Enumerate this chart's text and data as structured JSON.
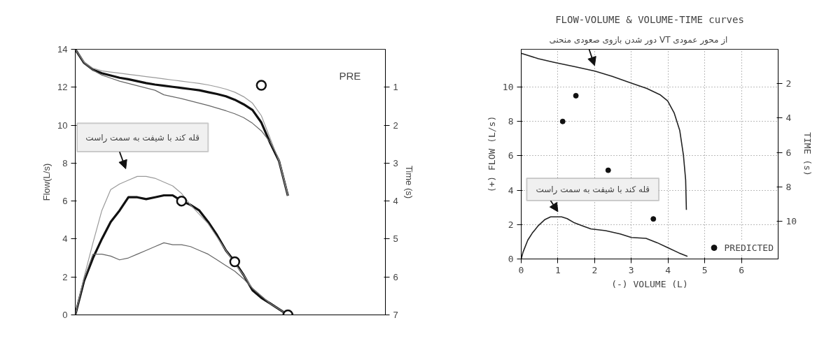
{
  "chart_data": [
    {
      "type": "line",
      "ylabel": "Flow(L/s)",
      "y2label": "Time (s)",
      "categories": [
        null,
        null,
        null,
        null,
        null,
        null,
        null,
        null,
        null,
        null,
        null,
        null,
        null,
        null,
        null,
        null,
        null,
        null,
        null,
        null,
        null,
        null,
        null,
        null,
        null,
        null,
        null,
        null,
        null,
        null,
        null,
        null,
        null,
        null,
        null,
        null
      ],
      "ylim": [
        0,
        14
      ],
      "yticks": [
        0,
        2,
        4,
        6,
        8,
        10,
        12,
        14
      ],
      "y2lim": [
        7,
        0
      ],
      "y2ticks": [
        1,
        2,
        3,
        4,
        5,
        6,
        7
      ],
      "tick_labels": "y",
      "annotations": [
        "PRE",
        "قله کند با شیفت به سمت راست"
      ],
      "series": [
        {
          "color": "#111111",
          "values": [
            0,
            1.8,
            3.0,
            4.0,
            4.9,
            5.5,
            6.2,
            6.2,
            6.1,
            6.2,
            6.3,
            6.3,
            6.0,
            5.8,
            5.5,
            4.9,
            4.2,
            3.4,
            2.8,
            2.1,
            1.3,
            0.9,
            0.6,
            0.3,
            0,
            null,
            null,
            null,
            null,
            null,
            null,
            null,
            null,
            null,
            null,
            null
          ]
        },
        {
          "color": "#9a9a9a",
          "values": [
            0,
            2.0,
            3.8,
            5.5,
            6.6,
            6.9,
            7.1,
            7.3,
            7.3,
            7.2,
            7.0,
            6.8,
            6.4,
            5.8,
            5.3,
            4.8,
            4.1,
            3.4,
            2.7,
            2.1,
            1.4,
            1.0,
            0.6,
            0.3,
            0,
            null,
            null,
            null,
            null,
            null,
            null,
            null,
            null,
            null,
            null,
            null
          ]
        },
        {
          "color": "#666666",
          "values": [
            0,
            1.9,
            3.2,
            3.2,
            3.1,
            2.9,
            3.0,
            3.2,
            3.4,
            3.6,
            3.8,
            3.7,
            3.7,
            3.6,
            3.4,
            3.2,
            2.9,
            2.6,
            2.3,
            1.9,
            1.4,
            1.0,
            0.6,
            0.3,
            0,
            null,
            null,
            null,
            null,
            null,
            null,
            null,
            null,
            null,
            null,
            null
          ]
        },
        {
          "color": "#111111",
          "axis": "y2",
          "values": [
            0,
            0.36,
            0.54,
            0.63,
            0.69,
            0.75,
            0.79,
            0.84,
            0.89,
            0.93,
            0.96,
            0.99,
            1.02,
            1.05,
            1.08,
            1.13,
            1.18,
            1.24,
            1.33,
            1.45,
            1.6,
            1.93,
            2.47,
            2.95,
            3.86,
            null,
            null,
            null,
            null,
            null,
            null,
            null,
            null,
            null,
            null,
            null
          ]
        },
        {
          "color": "#9a9a9a",
          "axis": "y2",
          "values": [
            0,
            0.33,
            0.5,
            0.57,
            0.6,
            0.63,
            0.66,
            0.69,
            0.72,
            0.75,
            0.78,
            0.81,
            0.84,
            0.87,
            0.9,
            0.94,
            0.99,
            1.05,
            1.13,
            1.25,
            1.42,
            1.75,
            2.35,
            2.95,
            3.86,
            null,
            null,
            null,
            null,
            null,
            null,
            null,
            null,
            null,
            null,
            null
          ]
        },
        {
          "color": "#666666",
          "axis": "y2",
          "values": [
            0,
            0.36,
            0.55,
            0.68,
            0.76,
            0.84,
            0.9,
            0.96,
            1.02,
            1.08,
            1.2,
            1.25,
            1.3,
            1.36,
            1.42,
            1.48,
            1.55,
            1.62,
            1.7,
            1.8,
            1.95,
            2.15,
            2.45,
            2.9,
            3.8,
            null,
            null,
            null,
            null,
            null,
            null,
            null,
            null,
            null,
            null,
            null
          ]
        },
        {
          "type": "scatter",
          "marker": "circle",
          "color": "#111111",
          "values": [
            null,
            null,
            null,
            null,
            null,
            null,
            null,
            null,
            null,
            null,
            null,
            null,
            6.0,
            null,
            null,
            null,
            null,
            null,
            2.8,
            null,
            null,
            null,
            null,
            null,
            0,
            null,
            null,
            null,
            null,
            null,
            null,
            null,
            null,
            null,
            null,
            null
          ]
        },
        {
          "type": "scatter",
          "marker": "circle",
          "color": "#111111",
          "axis": "y2",
          "values": [
            null,
            null,
            null,
            null,
            null,
            null,
            null,
            null,
            null,
            null,
            null,
            null,
            null,
            null,
            null,
            null,
            null,
            null,
            null,
            null,
            null,
            0.95,
            null,
            null,
            null,
            null,
            null,
            null,
            null,
            null,
            null,
            null,
            null,
            null,
            null,
            null
          ]
        }
      ]
    },
    {
      "type": "line",
      "title": "FLOW-VOLUME & VOLUME-TIME curves",
      "ylabel": "(+) FLOW (L/s)",
      "xlabel": "(-) VOLUME (L)",
      "y2label": "TIME (s)",
      "xlim": [
        0,
        7
      ],
      "xticks": [
        0,
        1,
        2,
        3,
        4,
        5,
        6
      ],
      "ylim": [
        0,
        12.2
      ],
      "yticks": [
        0,
        2,
        4,
        6,
        8,
        10
      ],
      "y2lim": [
        12.2,
        0
      ],
      "y2ticks": [
        2,
        4,
        6,
        8,
        10
      ],
      "grid": true,
      "legend": "bottom right",
      "annotations": [
        "دور شدن بازوی صعودی منحنی  VT از محور عمودی",
        "قله کند با شیفت به سمت راست"
      ],
      "series": [
        {
          "color": "#222222",
          "x": [
            0,
            0.05,
            0.18,
            0.3,
            0.47,
            0.65,
            0.8,
            1.1,
            1.25,
            1.45,
            1.7,
            1.9,
            2.3,
            2.7,
            3.0,
            3.4,
            3.7,
            4.0,
            4.3,
            4.53
          ],
          "values": [
            0,
            0.4,
            1.1,
            1.5,
            1.95,
            2.3,
            2.45,
            2.45,
            2.35,
            2.1,
            1.9,
            1.75,
            1.65,
            1.45,
            1.25,
            1.2,
            0.95,
            0.65,
            0.35,
            0.15
          ]
        },
        {
          "color": "#222222",
          "axis": "y2",
          "x": [
            0,
            0.47,
            0.9,
            1.47,
            2.01,
            2.48,
            2.99,
            3.42,
            3.78,
            3.99,
            4.17,
            4.32,
            4.42,
            4.48,
            4.5
          ],
          "values": [
            0.23,
            0.55,
            0.76,
            1.02,
            1.27,
            1.58,
            1.96,
            2.28,
            2.64,
            3.0,
            3.72,
            4.73,
            6.17,
            7.6,
            9.34
          ]
        },
        {
          "type": "scatter",
          "marker": "circle",
          "name": "PREDICTED",
          "color": "#111111",
          "x": [
            1.13,
            1.49,
            2.37,
            3.6
          ],
          "values": [
            8.0,
            9.5,
            5.16,
            2.33
          ]
        }
      ]
    }
  ]
}
